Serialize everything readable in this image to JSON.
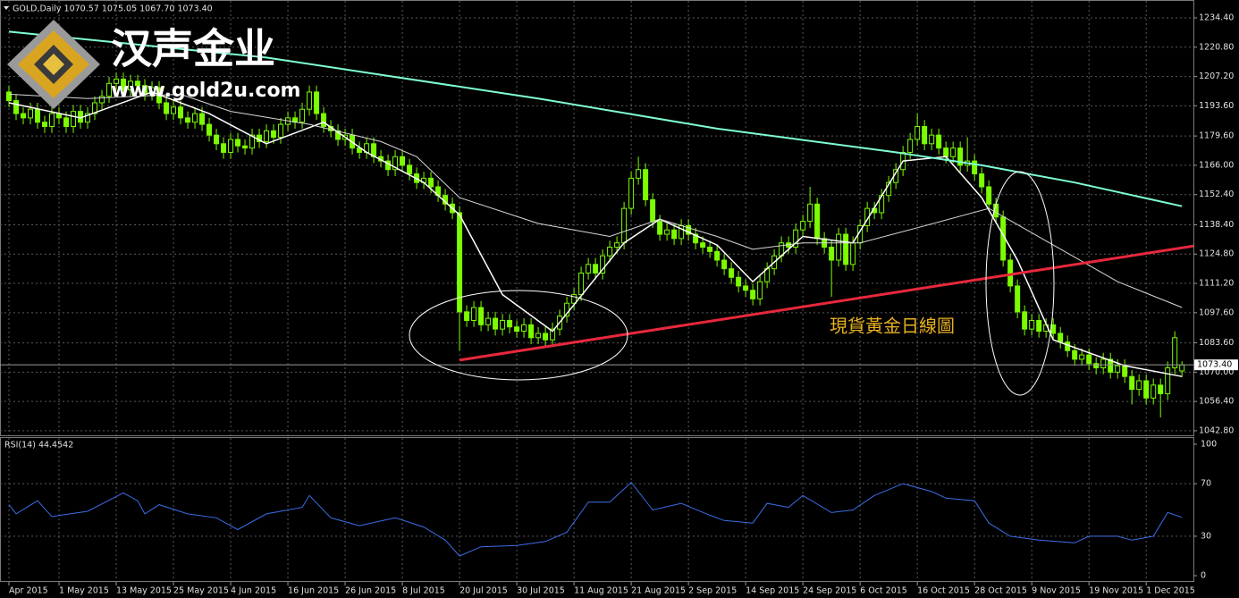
{
  "chart_data": {
    "type": "candlestick",
    "header": "GOLD,Daily  1070.57 1075.05 1067.70 1073.40",
    "watermark_title": "汉声金业",
    "watermark_url": "www.gold2u.com",
    "annotation": "現貨黃金日線圖",
    "color": "#7cfc00",
    "grid": true,
    "categories": [
      "Apr 2015",
      null,
      null,
      null,
      null,
      null,
      null,
      "1 May 2015",
      null,
      null,
      null,
      null,
      null,
      null,
      null,
      "13 May 2015",
      null,
      null,
      null,
      null,
      null,
      null,
      null,
      "25 May 2015",
      null,
      null,
      null,
      null,
      null,
      null,
      null,
      "4 Jun 2015",
      null,
      null,
      null,
      null,
      null,
      null,
      null,
      "16 Jun 2015",
      null,
      null,
      null,
      null,
      null,
      null,
      null,
      "26 Jun 2015",
      null,
      null,
      null,
      null,
      null,
      null,
      null,
      "8 Jul 2015",
      null,
      null,
      null,
      null,
      null,
      null,
      null,
      "20 Jul 2015",
      null,
      null,
      null,
      null,
      null,
      null,
      null,
      "30 Jul 2015",
      null,
      null,
      null,
      null,
      null,
      null,
      null,
      "11 Aug 2015",
      null,
      null,
      null,
      null,
      null,
      null,
      null,
      "21 Aug 2015",
      null,
      null,
      null,
      null,
      null,
      null,
      null,
      "2 Sep 2015",
      null,
      null,
      null,
      null,
      null,
      null,
      null,
      "14 Sep 2015",
      null,
      null,
      null,
      null,
      null,
      null,
      null,
      "24 Sep 2015",
      null,
      null,
      null,
      null,
      null,
      null,
      null,
      "6 Oct 2015",
      null,
      null,
      null,
      null,
      null,
      null,
      null,
      "16 Oct 2015",
      null,
      null,
      null,
      null,
      null,
      null,
      null,
      "28 Oct 2015",
      null,
      null,
      null,
      null,
      null,
      null,
      null,
      "9 Nov 2015",
      null,
      null,
      null,
      null,
      null,
      null,
      null,
      "19 Nov 2015",
      null,
      null,
      null,
      null,
      null,
      null,
      null,
      "1 Dec 2015",
      null,
      null,
      null,
      null,
      null
    ],
    "open": [
      1200,
      1196,
      1190,
      1188,
      1192,
      1186,
      1184,
      1190,
      1188,
      1184,
      1191,
      1186,
      1190,
      1195,
      1198,
      1204,
      1206,
      1201,
      1205,
      1203,
      1199,
      1202,
      1195,
      1190,
      1193,
      1188,
      1186,
      1190,
      1185,
      1180,
      1176,
      1172,
      1178,
      1175,
      1174,
      1180,
      1177,
      1182,
      1179,
      1185,
      1188,
      1186,
      1192,
      1200,
      1190,
      1184,
      1182,
      1178,
      1180,
      1174,
      1172,
      1176,
      1170,
      1168,
      1164,
      1170,
      1166,
      1162,
      1158,
      1160,
      1156,
      1152,
      1148,
      1144,
      1098,
      1094,
      1100,
      1092,
      1095,
      1090,
      1094,
      1091,
      1089,
      1092,
      1086,
      1088,
      1085,
      1090,
      1096,
      1102,
      1106,
      1116,
      1120,
      1116,
      1124,
      1128,
      1130,
      1146,
      1160,
      1164,
      1150,
      1140,
      1134,
      1136,
      1132,
      1138,
      1134,
      1130,
      1128,
      1126,
      1122,
      1118,
      1114,
      1110,
      1108,
      1104,
      1112,
      1118,
      1124,
      1130,
      1128,
      1136,
      1140,
      1148,
      1132,
      1128,
      1122,
      1134,
      1120,
      1130,
      1138,
      1146,
      1144,
      1152,
      1158,
      1164,
      1172,
      1178,
      1184,
      1176,
      1180,
      1174,
      1170,
      1174,
      1166,
      1168,
      1162,
      1156,
      1148,
      1142,
      1122,
      1110,
      1098,
      1090,
      1094,
      1089,
      1092,
      1088,
      1084,
      1080,
      1076,
      1078,
      1074,
      1072,
      1076,
      1070,
      1073,
      1068,
      1062,
      1066,
      1058,
      1064,
      1060,
      1072,
      1070.57
    ],
    "high": [
      1203,
      1199,
      1193,
      1195,
      1195,
      1189,
      1193,
      1193,
      1191,
      1194,
      1194,
      1193,
      1198,
      1201,
      1207,
      1209,
      1209,
      1208,
      1208,
      1206,
      1205,
      1205,
      1198,
      1196,
      1196,
      1191,
      1193,
      1193,
      1188,
      1183,
      1179,
      1181,
      1181,
      1178,
      1183,
      1183,
      1185,
      1185,
      1188,
      1191,
      1191,
      1195,
      1203,
      1203,
      1193,
      1187,
      1185,
      1183,
      1183,
      1177,
      1179,
      1179,
      1173,
      1171,
      1173,
      1173,
      1169,
      1165,
      1163,
      1163,
      1159,
      1155,
      1151,
      1147,
      1101,
      1103,
      1103,
      1098,
      1098,
      1097,
      1097,
      1094,
      1095,
      1095,
      1091,
      1091,
      1093,
      1099,
      1105,
      1109,
      1119,
      1123,
      1123,
      1127,
      1131,
      1133,
      1149,
      1163,
      1170,
      1167,
      1153,
      1143,
      1139,
      1139,
      1141,
      1141,
      1137,
      1133,
      1131,
      1129,
      1125,
      1121,
      1117,
      1113,
      1111,
      1115,
      1121,
      1127,
      1133,
      1133,
      1139,
      1143,
      1156,
      1151,
      1135,
      1131,
      1137,
      1137,
      1133,
      1141,
      1149,
      1149,
      1155,
      1161,
      1167,
      1175,
      1181,
      1190,
      1187,
      1183,
      1183,
      1177,
      1177,
      1177,
      1179,
      1171,
      1165,
      1159,
      1151,
      1145,
      1125,
      1113,
      1101,
      1097,
      1097,
      1095,
      1095,
      1091,
      1087,
      1083,
      1081,
      1081,
      1077,
      1079,
      1079,
      1076,
      1076,
      1071,
      1069,
      1069,
      1067,
      1067,
      1075,
      1089,
      1075.05
    ],
    "low": [
      1193,
      1187,
      1185,
      1185,
      1183,
      1181,
      1181,
      1185,
      1181,
      1181,
      1183,
      1183,
      1187,
      1192,
      1195,
      1201,
      1198,
      1198,
      1200,
      1196,
      1196,
      1192,
      1187,
      1187,
      1185,
      1183,
      1183,
      1182,
      1177,
      1173,
      1169,
      1169,
      1172,
      1171,
      1171,
      1174,
      1174,
      1176,
      1176,
      1182,
      1183,
      1183,
      1189,
      1187,
      1181,
      1179,
      1175,
      1175,
      1171,
      1169,
      1169,
      1167,
      1165,
      1161,
      1161,
      1163,
      1159,
      1155,
      1155,
      1153,
      1149,
      1145,
      1141,
      1080,
      1091,
      1091,
      1089,
      1089,
      1087,
      1087,
      1088,
      1086,
      1086,
      1083,
      1083,
      1082,
      1082,
      1087,
      1093,
      1099,
      1103,
      1113,
      1113,
      1113,
      1121,
      1125,
      1127,
      1143,
      1157,
      1147,
      1137,
      1131,
      1131,
      1129,
      1129,
      1131,
      1127,
      1125,
      1123,
      1119,
      1115,
      1111,
      1107,
      1105,
      1101,
      1101,
      1109,
      1115,
      1121,
      1125,
      1125,
      1133,
      1137,
      1129,
      1125,
      1105,
      1119,
      1117,
      1117,
      1127,
      1135,
      1141,
      1141,
      1149,
      1155,
      1161,
      1169,
      1175,
      1173,
      1173,
      1171,
      1167,
      1167,
      1163,
      1163,
      1159,
      1153,
      1145,
      1139,
      1119,
      1107,
      1095,
      1087,
      1087,
      1086,
      1086,
      1085,
      1081,
      1077,
      1073,
      1073,
      1071,
      1069,
      1069,
      1067,
      1067,
      1065,
      1055,
      1059,
      1055,
      1055,
      1049,
      1057,
      1069,
      1067.7
    ],
    "close": [
      1196,
      1190,
      1188,
      1192,
      1186,
      1184,
      1190,
      1188,
      1184,
      1191,
      1186,
      1190,
      1195,
      1198,
      1204,
      1206,
      1201,
      1205,
      1203,
      1199,
      1202,
      1195,
      1190,
      1193,
      1188,
      1186,
      1190,
      1185,
      1180,
      1176,
      1172,
      1178,
      1175,
      1174,
      1180,
      1177,
      1182,
      1179,
      1185,
      1188,
      1186,
      1192,
      1200,
      1190,
      1184,
      1182,
      1178,
      1180,
      1174,
      1172,
      1176,
      1170,
      1168,
      1164,
      1170,
      1166,
      1162,
      1158,
      1160,
      1156,
      1152,
      1148,
      1144,
      1098,
      1094,
      1100,
      1092,
      1095,
      1090,
      1094,
      1091,
      1089,
      1092,
      1086,
      1088,
      1085,
      1090,
      1096,
      1102,
      1106,
      1116,
      1120,
      1116,
      1124,
      1128,
      1130,
      1146,
      1160,
      1164,
      1150,
      1140,
      1134,
      1136,
      1132,
      1138,
      1134,
      1130,
      1128,
      1126,
      1122,
      1118,
      1114,
      1110,
      1108,
      1104,
      1112,
      1118,
      1124,
      1130,
      1128,
      1136,
      1140,
      1148,
      1132,
      1128,
      1122,
      1134,
      1120,
      1130,
      1138,
      1146,
      1144,
      1152,
      1158,
      1164,
      1172,
      1178,
      1184,
      1176,
      1180,
      1174,
      1170,
      1174,
      1166,
      1168,
      1162,
      1156,
      1148,
      1142,
      1122,
      1110,
      1098,
      1090,
      1094,
      1089,
      1092,
      1088,
      1084,
      1080,
      1076,
      1078,
      1074,
      1072,
      1076,
      1070,
      1073,
      1068,
      1062,
      1066,
      1058,
      1064,
      1060,
      1072,
      1086,
      1073.4
    ],
    "last_price_label": "1073.40",
    "xlim": [
      -1.25,
      165.6
    ],
    "ylim": [
      1040.7,
      1238.55
    ],
    "yticks": [
      {
        "value": 1234.4,
        "label": "1234.40"
      },
      {
        "value": 1220.8,
        "label": "1220.80"
      },
      {
        "value": 1207.2,
        "label": "1207.20"
      },
      {
        "value": 1193.6,
        "label": "1193.60"
      },
      {
        "value": 1179.6,
        "label": "1179.60"
      },
      {
        "value": 1166,
        "label": "1166.00"
      },
      {
        "value": 1152.4,
        "label": "1152.40"
      },
      {
        "value": 1138.4,
        "label": "1138.40"
      },
      {
        "value": 1124.8,
        "label": "1124.80"
      },
      {
        "value": 1111.2,
        "label": "1111.20"
      },
      {
        "value": 1097.6,
        "label": "1097.60"
      },
      {
        "value": 1083.6,
        "label": "1083.60"
      },
      {
        "value": 1070,
        "label": "1070.00"
      },
      {
        "value": 1056.4,
        "label": "1056.40"
      },
      {
        "value": 1042.8,
        "label": "1042.80"
      }
    ],
    "lines": [
      {
        "color": "#ffffff",
        "width": 1.5,
        "x": [
          0,
          10,
          20,
          28,
          36,
          44,
          50,
          58,
          63,
          69,
          76,
          86,
          91,
          99,
          104,
          111,
          118,
          125,
          131,
          136,
          141,
          146,
          156,
          164
        ],
        "values": [
          1195,
          1188,
          1200,
          1190,
          1176,
          1186,
          1172,
          1158,
          1143,
          1106,
          1089,
          1130,
          1141,
          1129,
          1112,
          1133,
          1130,
          1168,
          1170,
          1151,
          1122,
          1085,
          1073,
          1068
        ]
      },
      {
        "color": "#d8d8d8",
        "width": 1,
        "x": [
          0,
          11,
          24,
          31,
          42,
          52,
          57,
          63,
          74,
          84,
          91,
          99,
          104,
          111,
          119,
          127,
          137,
          146,
          155,
          164
        ],
        "values": [
          1199,
          1197,
          1199,
          1191,
          1185,
          1177,
          1170,
          1151,
          1139,
          1133,
          1141,
          1133,
          1127,
          1130,
          1130,
          1137,
          1146,
          1129,
          1112,
          1100
        ]
      },
      {
        "color": "#7fffd4",
        "width": 2,
        "x": [
          0,
          36,
          74,
          99,
          124,
          136,
          149,
          164
        ],
        "values": [
          1228,
          1216,
          1197,
          1183,
          1172,
          1166,
          1158,
          1147
        ]
      }
    ],
    "trendline": {
      "color": "#e8283c",
      "x": [
        63,
        170
      ],
      "values": [
        1075.6,
        1130.8
      ]
    },
    "rsi": {
      "label": "RSI(14) 44.4542",
      "color": "#3c6ee8",
      "x": [
        0,
        1,
        4,
        6,
        11,
        16,
        18,
        19,
        21,
        25,
        29,
        32,
        36,
        41,
        42,
        45,
        49,
        54,
        58,
        61,
        63,
        66,
        71,
        75,
        78,
        81,
        84,
        87,
        90,
        94,
        98,
        100,
        104,
        106,
        109,
        111,
        115,
        118,
        121,
        125,
        129,
        131,
        135,
        137,
        140,
        144,
        149,
        151,
        155,
        157,
        160,
        162,
        164
      ],
      "values": [
        54,
        47,
        57,
        45,
        49,
        63,
        57,
        47,
        54,
        47,
        44,
        35,
        47,
        52,
        61,
        44,
        38,
        44,
        37,
        27,
        15,
        22,
        23,
        26,
        33,
        56,
        56,
        71,
        50,
        55,
        46,
        42,
        40,
        55,
        52,
        61,
        48,
        50,
        61,
        70,
        64,
        59,
        57,
        40,
        30,
        27,
        25,
        30,
        30,
        27,
        30,
        48,
        44.4542
      ],
      "ylim": [
        0,
        100
      ],
      "yticks": [
        100,
        70,
        30,
        0
      ]
    }
  }
}
